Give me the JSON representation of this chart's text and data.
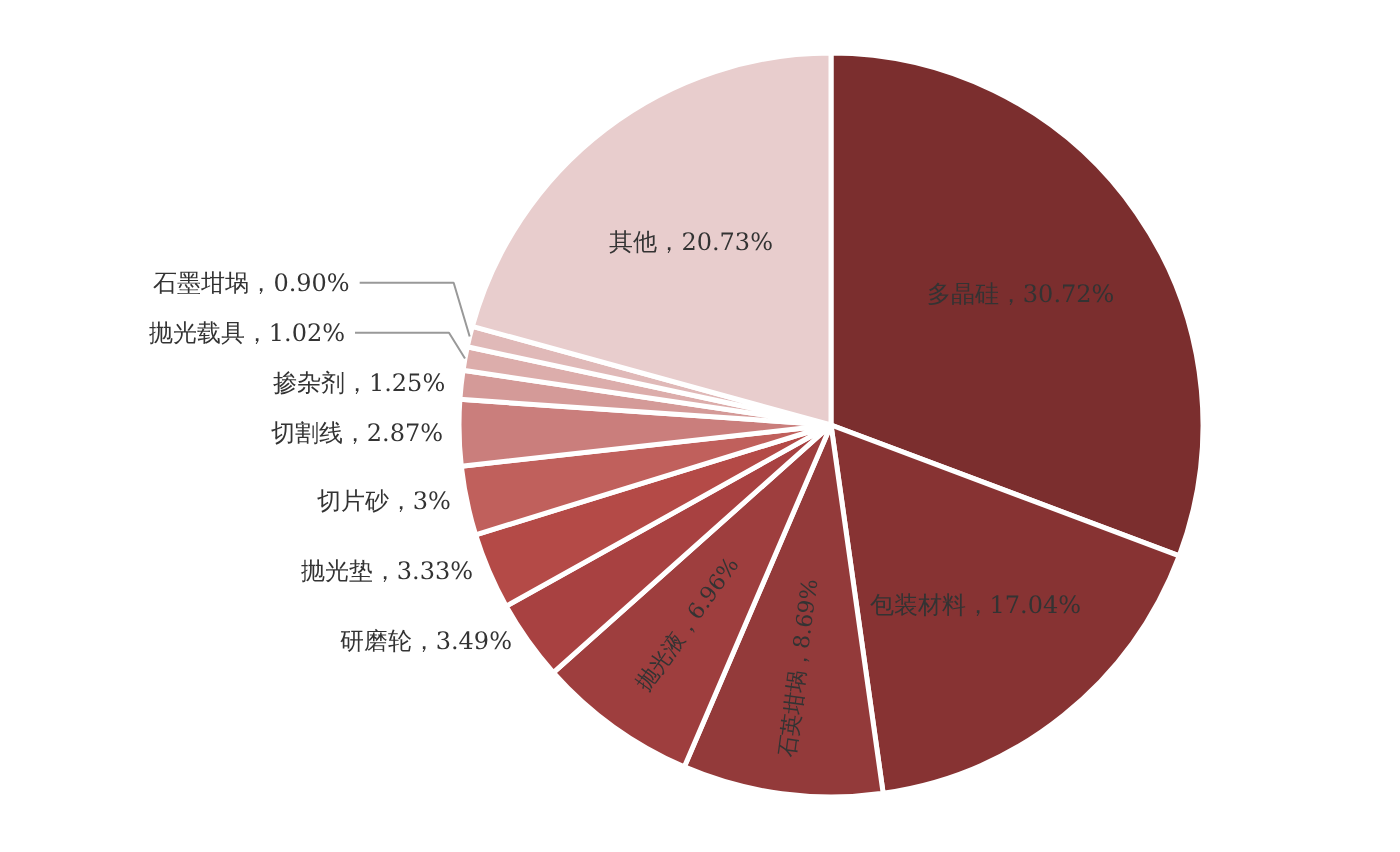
{
  "chart_data": {
    "type": "pie",
    "categories": [
      "多晶硅",
      "包装材料",
      "石英坩埚",
      "抛光液",
      "研磨轮",
      "抛光垫",
      "切片砂",
      "切割线",
      "掺杂剂",
      "抛光载具",
      "石墨坩埚",
      "其他"
    ],
    "values": [
      30.72,
      17.04,
      8.69,
      6.96,
      3.49,
      3.33,
      3,
      2.87,
      1.25,
      1.02,
      0.9,
      20.73
    ],
    "value_labels": [
      "30.72%",
      "17.04%",
      "8.69%",
      "6.96%",
      "3.49%",
      "3.33%",
      "3%",
      "2.87%",
      "1.25%",
      "1.02%",
      "0.90%",
      "20.73%"
    ],
    "colors": [
      "#7b2e2e",
      "#873333",
      "#933a3a",
      "#9e3e3e",
      "#a84141",
      "#b44a47",
      "#c0605c",
      "#ca7e7c",
      "#d49a98",
      "#dcadab",
      "#e0b9b8",
      "#e8cdcd"
    ]
  }
}
